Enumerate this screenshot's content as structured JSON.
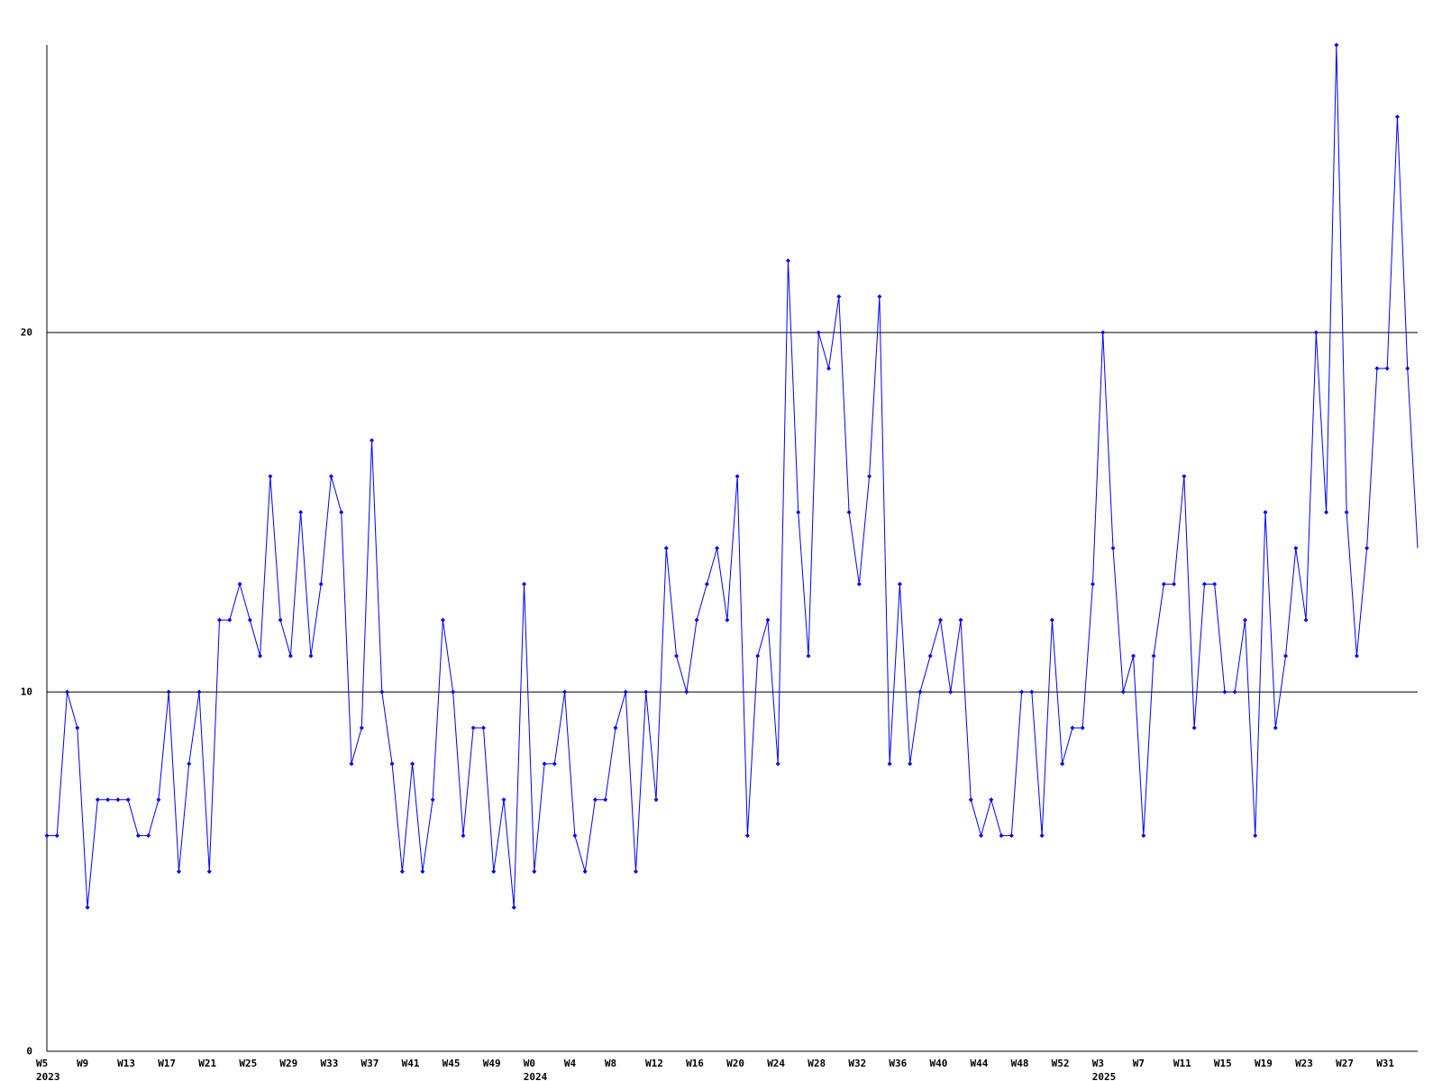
{
  "chart_data": {
    "type": "line",
    "color": "#0000ff",
    "categories": [
      "W5\n2023",
      null,
      null,
      null,
      "W9",
      null,
      null,
      null,
      "W13",
      null,
      null,
      null,
      "W17",
      null,
      null,
      null,
      "W21",
      null,
      null,
      null,
      "W25",
      null,
      null,
      null,
      "W29",
      null,
      null,
      null,
      "W33",
      null,
      null,
      null,
      "W37",
      null,
      null,
      null,
      "W41",
      null,
      null,
      null,
      "W45",
      null,
      null,
      null,
      "W49",
      null,
      null,
      null,
      "W0\n2024",
      null,
      null,
      null,
      "W4",
      null,
      null,
      null,
      "W8",
      null,
      null,
      null,
      "W12",
      null,
      null,
      null,
      "W16",
      null,
      null,
      null,
      "W20",
      null,
      null,
      null,
      "W24",
      null,
      null,
      null,
      "W28",
      null,
      null,
      null,
      "W32",
      null,
      null,
      null,
      "W36",
      null,
      null,
      null,
      "W40",
      null,
      null,
      null,
      "W44",
      null,
      null,
      null,
      "W48",
      null,
      null,
      null,
      "W52",
      null,
      null,
      null,
      "W3\n2025",
      null,
      null,
      null,
      "W7",
      null,
      null,
      null,
      "W11",
      null,
      null,
      null,
      "W15",
      null,
      null,
      null,
      "W19",
      null,
      null,
      null,
      "W23",
      null,
      null,
      null,
      "W27",
      null,
      null,
      null,
      "W31",
      null,
      null,
      null
    ],
    "values": [
      6,
      6,
      10,
      9,
      4,
      7,
      7,
      7,
      7,
      6,
      6,
      7,
      10,
      5,
      8,
      10,
      5,
      12,
      12,
      13,
      12,
      11,
      16,
      12,
      11,
      15,
      11,
      13,
      16,
      15,
      8,
      9,
      17,
      10,
      8,
      5,
      8,
      5,
      7,
      12,
      10,
      6,
      9,
      9,
      5,
      7,
      4,
      13,
      5,
      8,
      8,
      10,
      6,
      5,
      7,
      7,
      9,
      10,
      5,
      10,
      7,
      14,
      11,
      10,
      12,
      13,
      14,
      12,
      16,
      6,
      11,
      12,
      8,
      22,
      15,
      11,
      20,
      19,
      21,
      15,
      13,
      16,
      21,
      8,
      13,
      8,
      10,
      11,
      12,
      10,
      12,
      7,
      6,
      7,
      6,
      6,
      10,
      10,
      6,
      12,
      8,
      9,
      9,
      13,
      20,
      14,
      10,
      11,
      6,
      11,
      13,
      13,
      16,
      9,
      13,
      13,
      10,
      10,
      12,
      6,
      15,
      9,
      11,
      14,
      12,
      20,
      15,
      28,
      15,
      11,
      14,
      19,
      19,
      26,
      19,
      14
    ],
    "ylim": [
      0,
      28
    ],
    "yticks": [
      0,
      10,
      20
    ],
    "grid": true
  }
}
